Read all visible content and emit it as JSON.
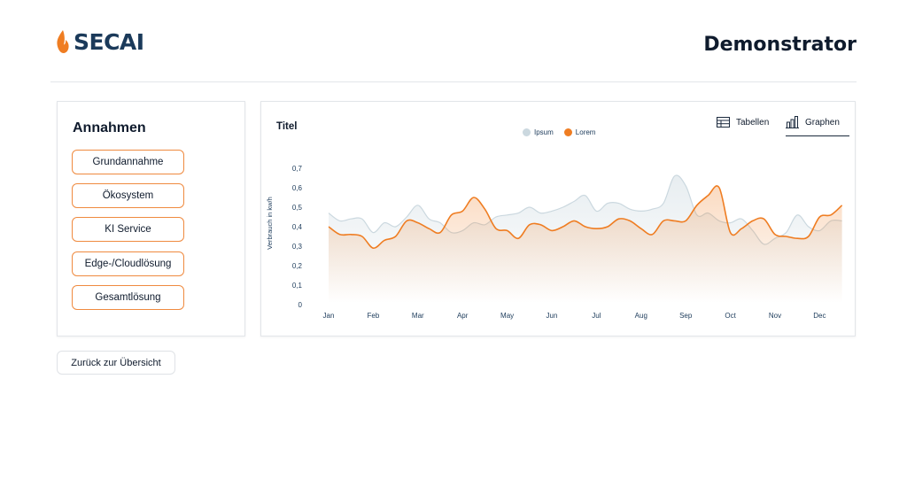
{
  "header": {
    "logo_text": "SECAI",
    "page_title": "Demonstrator"
  },
  "assumptions": {
    "title": "Annahmen",
    "options": [
      "Grundannahme",
      "Ökosystem",
      "KI Service",
      "Edge-/Cloudlösung",
      "Gesamtlösung"
    ]
  },
  "chart_panel": {
    "title": "Titel",
    "view_tables_label": "Tabellen",
    "view_graphs_label": "Graphen",
    "active_view": "Graphen"
  },
  "back_button": {
    "label": "Zurück zur Übersicht"
  },
  "colors": {
    "accent": "#ef7d22",
    "series_ipsum": "#cbd8df",
    "series_lorem": "#ef7d22",
    "text": "#0f1b2d",
    "axis_text": "#1b3a5a"
  },
  "chart_data": {
    "type": "area",
    "title": "Titel",
    "xlabel": "",
    "ylabel": "Verbrauch in kw/h",
    "ylim": [
      0,
      0.7
    ],
    "yticks": [
      "0",
      "0,1",
      "0,2",
      "0,3",
      "0,4",
      "0,5",
      "0,6",
      "0,7"
    ],
    "categories": [
      "Jan",
      "Feb",
      "Mar",
      "Apr",
      "May",
      "Jun",
      "Jul",
      "Aug",
      "Sep",
      "Oct",
      "Nov",
      "Dec"
    ],
    "legend_position": "top-center",
    "x": [
      0,
      0.25,
      0.5,
      0.75,
      1,
      1.25,
      1.5,
      1.75,
      2,
      2.25,
      2.5,
      2.75,
      3,
      3.25,
      3.5,
      3.75,
      4,
      4.25,
      4.5,
      4.75,
      5,
      5.25,
      5.5,
      5.75,
      6,
      6.25,
      6.5,
      6.75,
      7,
      7.25,
      7.5,
      7.75,
      8,
      8.25,
      8.5,
      8.75,
      9,
      9.25,
      9.5,
      9.75,
      10,
      10.25,
      10.5,
      10.75,
      11,
      11.25,
      11.5
    ],
    "series": [
      {
        "name": "Ipsum",
        "color": "#cbd8df",
        "values": [
          0.47,
          0.43,
          0.44,
          0.44,
          0.37,
          0.42,
          0.4,
          0.45,
          0.51,
          0.44,
          0.42,
          0.37,
          0.38,
          0.42,
          0.41,
          0.45,
          0.46,
          0.47,
          0.5,
          0.47,
          0.48,
          0.5,
          0.53,
          0.56,
          0.48,
          0.52,
          0.52,
          0.49,
          0.48,
          0.49,
          0.52,
          0.66,
          0.61,
          0.46,
          0.47,
          0.43,
          0.42,
          0.44,
          0.38,
          0.31,
          0.34,
          0.37,
          0.46,
          0.4,
          0.38,
          0.43,
          0.43
        ]
      },
      {
        "name": "Lorem",
        "color": "#ef7d22",
        "values": [
          0.4,
          0.36,
          0.36,
          0.35,
          0.29,
          0.33,
          0.35,
          0.43,
          0.42,
          0.39,
          0.37,
          0.46,
          0.48,
          0.55,
          0.49,
          0.39,
          0.38,
          0.34,
          0.41,
          0.41,
          0.38,
          0.4,
          0.43,
          0.4,
          0.39,
          0.4,
          0.44,
          0.43,
          0.39,
          0.36,
          0.43,
          0.43,
          0.43,
          0.51,
          0.56,
          0.6,
          0.37,
          0.39,
          0.43,
          0.44,
          0.36,
          0.35,
          0.34,
          0.35,
          0.45,
          0.46,
          0.51
        ]
      }
    ]
  }
}
